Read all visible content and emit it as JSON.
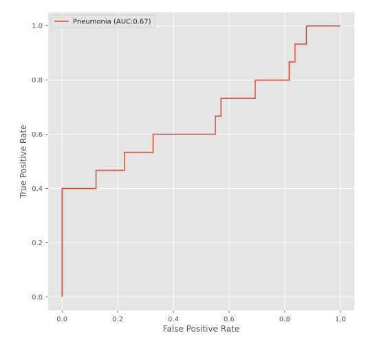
{
  "chart_data": {
    "type": "line",
    "xlabel": "False Positive Rate",
    "ylabel": "True Positive Rate",
    "xlim": [
      -0.05,
      1.05
    ],
    "ylim": [
      -0.05,
      1.05
    ],
    "xticks": [
      0.0,
      0.2,
      0.4,
      0.6,
      0.8,
      1.0
    ],
    "yticks": [
      0.0,
      0.2,
      0.4,
      0.6,
      0.8,
      1.0
    ],
    "xtick_labels": [
      "0.0",
      "0.2",
      "0.4",
      "0.6",
      "0.8",
      "1.0"
    ],
    "ytick_labels": [
      "0.0",
      "0.2",
      "0.4",
      "0.6",
      "0.8",
      "1.0"
    ],
    "grid": true,
    "legend_position": "top-left",
    "series": [
      {
        "name": "Pneumonia (AUC:0.67)",
        "color": "#e24a33",
        "x": [
          0.0,
          0.0,
          0.122,
          0.122,
          0.224,
          0.224,
          0.327,
          0.327,
          0.551,
          0.551,
          0.571,
          0.571,
          0.694,
          0.694,
          0.816,
          0.816,
          0.837,
          0.837,
          0.878,
          0.878,
          1.0
        ],
        "y": [
          0.0,
          0.4,
          0.4,
          0.467,
          0.467,
          0.533,
          0.533,
          0.6,
          0.6,
          0.667,
          0.667,
          0.733,
          0.733,
          0.8,
          0.8,
          0.867,
          0.867,
          0.933,
          0.933,
          1.0,
          1.0
        ]
      }
    ]
  }
}
